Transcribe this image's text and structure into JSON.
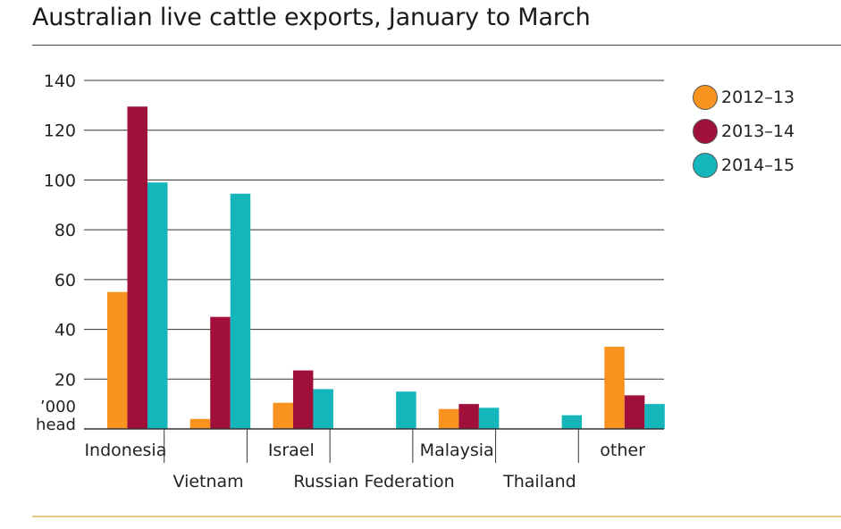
{
  "title": "Australian live cattle exports, January to March",
  "colors": {
    "series": [
      "#f7931e",
      "#a0103a",
      "#14b5bb"
    ],
    "grid": "#333333",
    "top_rule": "#444444",
    "bottom_rule": "#e8c98a"
  },
  "chart_data": {
    "type": "bar",
    "title": "Australian live cattle exports, January to March",
    "ylabel": "'000 head",
    "ylabel_lines": [
      "’000",
      "head"
    ],
    "ylim": [
      0,
      140
    ],
    "yticks": [
      20,
      40,
      60,
      80,
      100,
      120,
      140
    ],
    "grid": true,
    "legend_position": "top-right",
    "categories": [
      "Indonesia",
      "Vietnam",
      "Israel",
      "Russian Federation",
      "Malaysia",
      "Thailand",
      "other"
    ],
    "series": [
      {
        "name": "2012–13",
        "values": [
          55,
          4,
          10.5,
          0,
          8,
          0,
          33
        ]
      },
      {
        "name": "2013–14",
        "values": [
          129.5,
          45,
          23.5,
          0,
          10,
          0,
          13.5
        ]
      },
      {
        "name": "2014–15",
        "values": [
          99,
          94.5,
          16,
          15,
          8.5,
          5.5,
          10
        ]
      }
    ]
  }
}
